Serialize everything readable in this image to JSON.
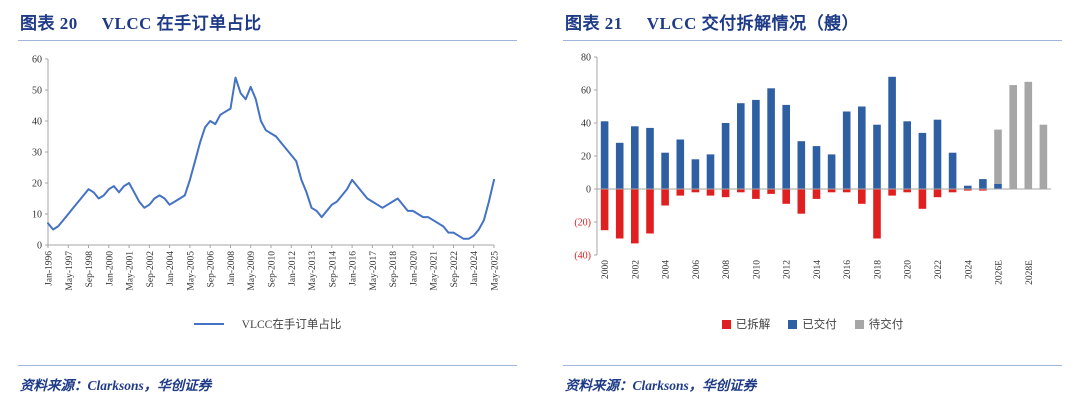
{
  "theme": {
    "title_color": "#1F3B87",
    "rule_color": "#9FB6DA",
    "background": "#FFFFFF",
    "text_color": "#333333"
  },
  "panels": [
    {
      "title_prefix": "图表 20",
      "title": "VLCC 在手订单占比",
      "source": "资料来源：Clarksons，华创证券"
    },
    {
      "title_prefix": "图表 21",
      "title": "VLCC 交付拆解情况（艘）",
      "source": "资料来源：Clarksons，华创证券"
    }
  ],
  "chart_data": [
    {
      "type": "line",
      "series_name": "VLCC在手订单占比",
      "color": "#4472C4",
      "axis_color": "#A6A6A6",
      "ylim": [
        0,
        60
      ],
      "yticks": [
        0,
        10,
        20,
        30,
        40,
        50,
        60
      ],
      "x_unit": "month",
      "x_start": "Jan-1996",
      "x_step_months": 4,
      "x_tick_every": 4,
      "x_tick_labels": [
        "Jan-1996",
        "May-1997",
        "Sep-1998",
        "Jan-2000",
        "May-2001",
        "Sep-2002",
        "Jan-2004",
        "May-2005",
        "Sep-2006",
        "Jan-2008",
        "May-2009",
        "Sep-2010",
        "Jan-2012",
        "May-2013",
        "Sep-2014",
        "Jan-2016",
        "May-2017",
        "Sep-2018",
        "Jan-2020",
        "May-2021",
        "Sep-2022",
        "Jan-2024",
        "May-2025"
      ],
      "values": [
        7,
        5,
        6,
        8,
        10,
        12,
        14,
        16,
        18,
        17,
        15,
        16,
        18,
        19,
        17,
        19,
        20,
        17,
        14,
        12,
        13,
        15,
        16,
        15,
        13,
        14,
        15,
        16,
        21,
        27,
        33,
        38,
        40,
        39,
        42,
        43,
        44,
        54,
        49,
        47,
        51,
        47,
        40,
        37,
        36,
        35,
        33,
        31,
        29,
        27,
        21,
        17,
        12,
        11,
        9,
        11,
        13,
        14,
        16,
        18,
        21,
        19,
        17,
        15,
        14,
        13,
        12,
        13,
        14,
        15,
        13,
        11,
        11,
        10,
        9,
        9,
        8,
        7,
        6,
        4,
        4,
        3,
        2,
        2,
        3,
        5,
        8,
        14,
        21
      ],
      "grid": false,
      "legend_position": "bottom"
    },
    {
      "type": "bar",
      "stacked": true,
      "axis_color": "#A6A6A6",
      "ylim": [
        -40,
        80
      ],
      "yticks": [
        80,
        60,
        40,
        20,
        0,
        -20,
        -40
      ],
      "ytick_labels": [
        "80",
        "60",
        "40",
        "20",
        "0",
        "(20)",
        "(40)"
      ],
      "negative_label_color": "#E02020",
      "categories": [
        "2000",
        "2001",
        "2002",
        "2003",
        "2004",
        "2005",
        "2006",
        "2007",
        "2008",
        "2009",
        "2010",
        "2011",
        "2012",
        "2013",
        "2014",
        "2015",
        "2016",
        "2017",
        "2018",
        "2019",
        "2020",
        "2021",
        "2022",
        "2023",
        "2024",
        "2025",
        "2026E",
        "2027E",
        "2028E",
        "2029E"
      ],
      "x_tick_every": 2,
      "x_tick_labels": [
        "2000",
        "2002",
        "2004",
        "2006",
        "2008",
        "2010",
        "2012",
        "2014",
        "2016",
        "2018",
        "2020",
        "2022",
        "2024",
        "2026E",
        "2028E"
      ],
      "series": [
        {
          "name": "已拆解",
          "color": "#E02020",
          "values": [
            -25,
            -30,
            -33,
            -27,
            -10,
            -4,
            -2,
            -4,
            -5,
            -2,
            -6,
            -3,
            -9,
            -15,
            -6,
            -2,
            -2,
            -9,
            -30,
            -4,
            -2,
            -12,
            -5,
            -2,
            -1,
            -1,
            0,
            0,
            0,
            0
          ]
        },
        {
          "name": "已交付",
          "color": "#2E5FA3",
          "values": [
            41,
            28,
            38,
            37,
            22,
            30,
            18,
            21,
            40,
            52,
            54,
            61,
            51,
            29,
            26,
            21,
            47,
            50,
            39,
            68,
            41,
            34,
            42,
            22,
            2,
            6,
            3,
            0,
            0,
            0
          ]
        },
        {
          "name": "待交付",
          "color": "#A6A6A6",
          "values": [
            0,
            0,
            0,
            0,
            0,
            0,
            0,
            0,
            0,
            0,
            0,
            0,
            0,
            0,
            0,
            0,
            0,
            0,
            0,
            0,
            0,
            0,
            0,
            0,
            0,
            0,
            33,
            63,
            65,
            39
          ]
        }
      ],
      "legend_position": "bottom"
    }
  ]
}
